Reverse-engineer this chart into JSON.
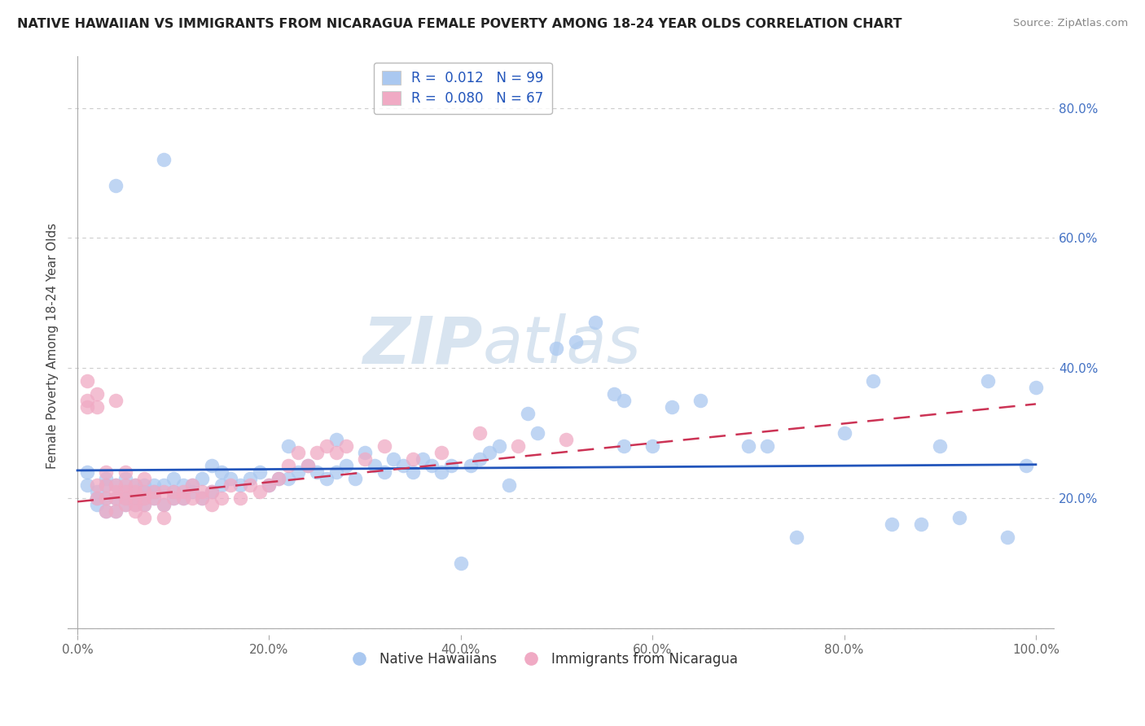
{
  "title": "NATIVE HAWAIIAN VS IMMIGRANTS FROM NICARAGUA FEMALE POVERTY AMONG 18-24 YEAR OLDS CORRELATION CHART",
  "source": "Source: ZipAtlas.com",
  "ylabel": "Female Poverty Among 18-24 Year Olds",
  "xlim": [
    -0.01,
    1.02
  ],
  "ylim": [
    -0.01,
    0.88
  ],
  "xticks": [
    0.0,
    0.2,
    0.4,
    0.6,
    0.8,
    1.0
  ],
  "xticklabels": [
    "0.0%",
    "20.0%",
    "40.0%",
    "60.0%",
    "80.0%",
    "100.0%"
  ],
  "yticks": [
    0.0,
    0.2,
    0.4,
    0.6,
    0.8
  ],
  "yticklabels": [
    "",
    "20.0%",
    "40.0%",
    "60.0%",
    "80.0%"
  ],
  "blue_color": "#aac8f0",
  "pink_color": "#f0aac4",
  "blue_line_color": "#2255bb",
  "pink_line_color": "#cc3355",
  "grid_color": "#cccccc",
  "watermark_color": "#d8e4f0",
  "blue_trend": [
    0.0,
    1.0,
    0.243,
    0.252
  ],
  "pink_trend": [
    0.0,
    1.0,
    0.195,
    0.345
  ],
  "blue_scatter_x": [
    0.01,
    0.01,
    0.02,
    0.02,
    0.02,
    0.03,
    0.03,
    0.03,
    0.03,
    0.04,
    0.04,
    0.04,
    0.05,
    0.05,
    0.05,
    0.05,
    0.06,
    0.06,
    0.06,
    0.07,
    0.07,
    0.07,
    0.07,
    0.08,
    0.08,
    0.08,
    0.09,
    0.09,
    0.1,
    0.1,
    0.1,
    0.11,
    0.11,
    0.12,
    0.12,
    0.13,
    0.13,
    0.14,
    0.14,
    0.15,
    0.15,
    0.16,
    0.17,
    0.18,
    0.19,
    0.2,
    0.21,
    0.22,
    0.22,
    0.23,
    0.24,
    0.25,
    0.26,
    0.27,
    0.27,
    0.28,
    0.29,
    0.3,
    0.31,
    0.32,
    0.33,
    0.34,
    0.35,
    0.36,
    0.37,
    0.38,
    0.39,
    0.4,
    0.41,
    0.42,
    0.43,
    0.44,
    0.45,
    0.47,
    0.48,
    0.5,
    0.52,
    0.54,
    0.56,
    0.57,
    0.57,
    0.6,
    0.62,
    0.65,
    0.7,
    0.72,
    0.75,
    0.8,
    0.83,
    0.85,
    0.88,
    0.9,
    0.92,
    0.95,
    0.97,
    0.99,
    1.0,
    0.04,
    0.09
  ],
  "blue_scatter_y": [
    0.22,
    0.24,
    0.2,
    0.19,
    0.21,
    0.18,
    0.2,
    0.22,
    0.23,
    0.18,
    0.2,
    0.22,
    0.19,
    0.21,
    0.2,
    0.23,
    0.2,
    0.22,
    0.19,
    0.21,
    0.2,
    0.22,
    0.19,
    0.2,
    0.22,
    0.21,
    0.19,
    0.22,
    0.21,
    0.23,
    0.2,
    0.22,
    0.2,
    0.21,
    0.22,
    0.2,
    0.23,
    0.21,
    0.25,
    0.22,
    0.24,
    0.23,
    0.22,
    0.23,
    0.24,
    0.22,
    0.23,
    0.23,
    0.28,
    0.24,
    0.25,
    0.24,
    0.23,
    0.24,
    0.29,
    0.25,
    0.23,
    0.27,
    0.25,
    0.24,
    0.26,
    0.25,
    0.24,
    0.26,
    0.25,
    0.24,
    0.25,
    0.1,
    0.25,
    0.26,
    0.27,
    0.28,
    0.22,
    0.33,
    0.3,
    0.43,
    0.44,
    0.47,
    0.36,
    0.35,
    0.28,
    0.28,
    0.34,
    0.35,
    0.28,
    0.28,
    0.14,
    0.3,
    0.38,
    0.16,
    0.16,
    0.28,
    0.17,
    0.38,
    0.14,
    0.25,
    0.37,
    0.68,
    0.72
  ],
  "pink_scatter_x": [
    0.01,
    0.01,
    0.01,
    0.02,
    0.02,
    0.02,
    0.02,
    0.03,
    0.03,
    0.03,
    0.03,
    0.04,
    0.04,
    0.04,
    0.04,
    0.04,
    0.05,
    0.05,
    0.05,
    0.05,
    0.05,
    0.06,
    0.06,
    0.06,
    0.06,
    0.06,
    0.07,
    0.07,
    0.07,
    0.07,
    0.07,
    0.08,
    0.08,
    0.09,
    0.09,
    0.09,
    0.1,
    0.1,
    0.11,
    0.11,
    0.12,
    0.12,
    0.13,
    0.13,
    0.14,
    0.14,
    0.15,
    0.16,
    0.17,
    0.18,
    0.19,
    0.2,
    0.21,
    0.22,
    0.23,
    0.24,
    0.25,
    0.26,
    0.27,
    0.28,
    0.3,
    0.32,
    0.35,
    0.38,
    0.42,
    0.46,
    0.51
  ],
  "pink_scatter_y": [
    0.34,
    0.38,
    0.35,
    0.34,
    0.36,
    0.2,
    0.22,
    0.24,
    0.2,
    0.22,
    0.18,
    0.21,
    0.2,
    0.18,
    0.22,
    0.35,
    0.2,
    0.22,
    0.19,
    0.21,
    0.24,
    0.2,
    0.22,
    0.19,
    0.21,
    0.18,
    0.19,
    0.21,
    0.2,
    0.23,
    0.17,
    0.2,
    0.21,
    0.19,
    0.21,
    0.17,
    0.2,
    0.21,
    0.2,
    0.21,
    0.2,
    0.22,
    0.21,
    0.2,
    0.19,
    0.21,
    0.2,
    0.22,
    0.2,
    0.22,
    0.21,
    0.22,
    0.23,
    0.25,
    0.27,
    0.25,
    0.27,
    0.28,
    0.27,
    0.28,
    0.26,
    0.28,
    0.26,
    0.27,
    0.3,
    0.28,
    0.29
  ]
}
